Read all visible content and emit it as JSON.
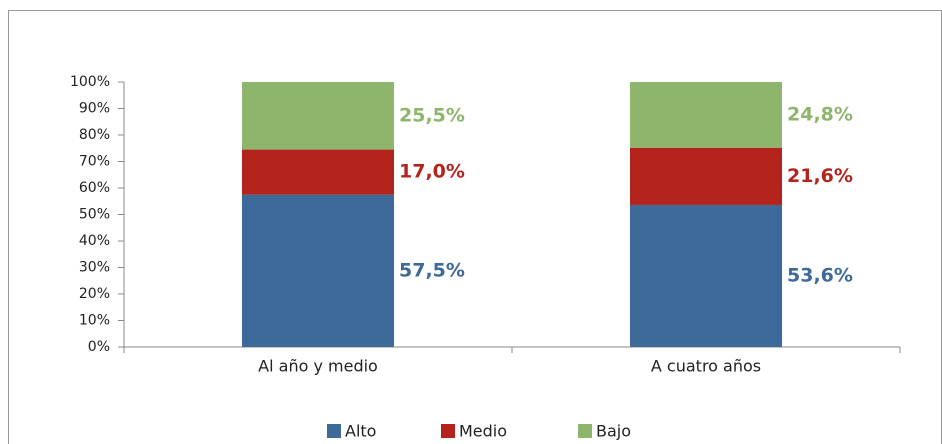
{
  "chart_data": {
    "type": "stacked_bar",
    "categories": [
      "Al año y medio",
      "A cuatro años"
    ],
    "series": [
      {
        "name": "Alto",
        "color": "#3d6a99",
        "values": [
          57.5,
          53.6
        ],
        "value_labels": [
          "57,5%",
          "53,6%"
        ]
      },
      {
        "name": "Medio",
        "color": "#b5231d",
        "values": [
          17.0,
          21.6
        ],
        "value_labels": [
          "17,0%",
          "21,6%"
        ]
      },
      {
        "name": "Bajo",
        "color": "#8db56b",
        "values": [
          25.5,
          24.8
        ],
        "value_labels": [
          "25,5%",
          "24,8%"
        ]
      }
    ],
    "ylim": [
      0,
      100
    ],
    "yticks": [
      {
        "value": 0,
        "label": "0%"
      },
      {
        "value": 10,
        "label": "10%"
      },
      {
        "value": 20,
        "label": "20%"
      },
      {
        "value": 30,
        "label": "30%"
      },
      {
        "value": 40,
        "label": "40%"
      },
      {
        "value": 50,
        "label": "50%"
      },
      {
        "value": 60,
        "label": "60%"
      },
      {
        "value": 70,
        "label": "70%"
      },
      {
        "value": 80,
        "label": "80%"
      },
      {
        "value": 90,
        "label": "90%"
      },
      {
        "value": 100,
        "label": "100%"
      }
    ],
    "legend": "bottom"
  }
}
